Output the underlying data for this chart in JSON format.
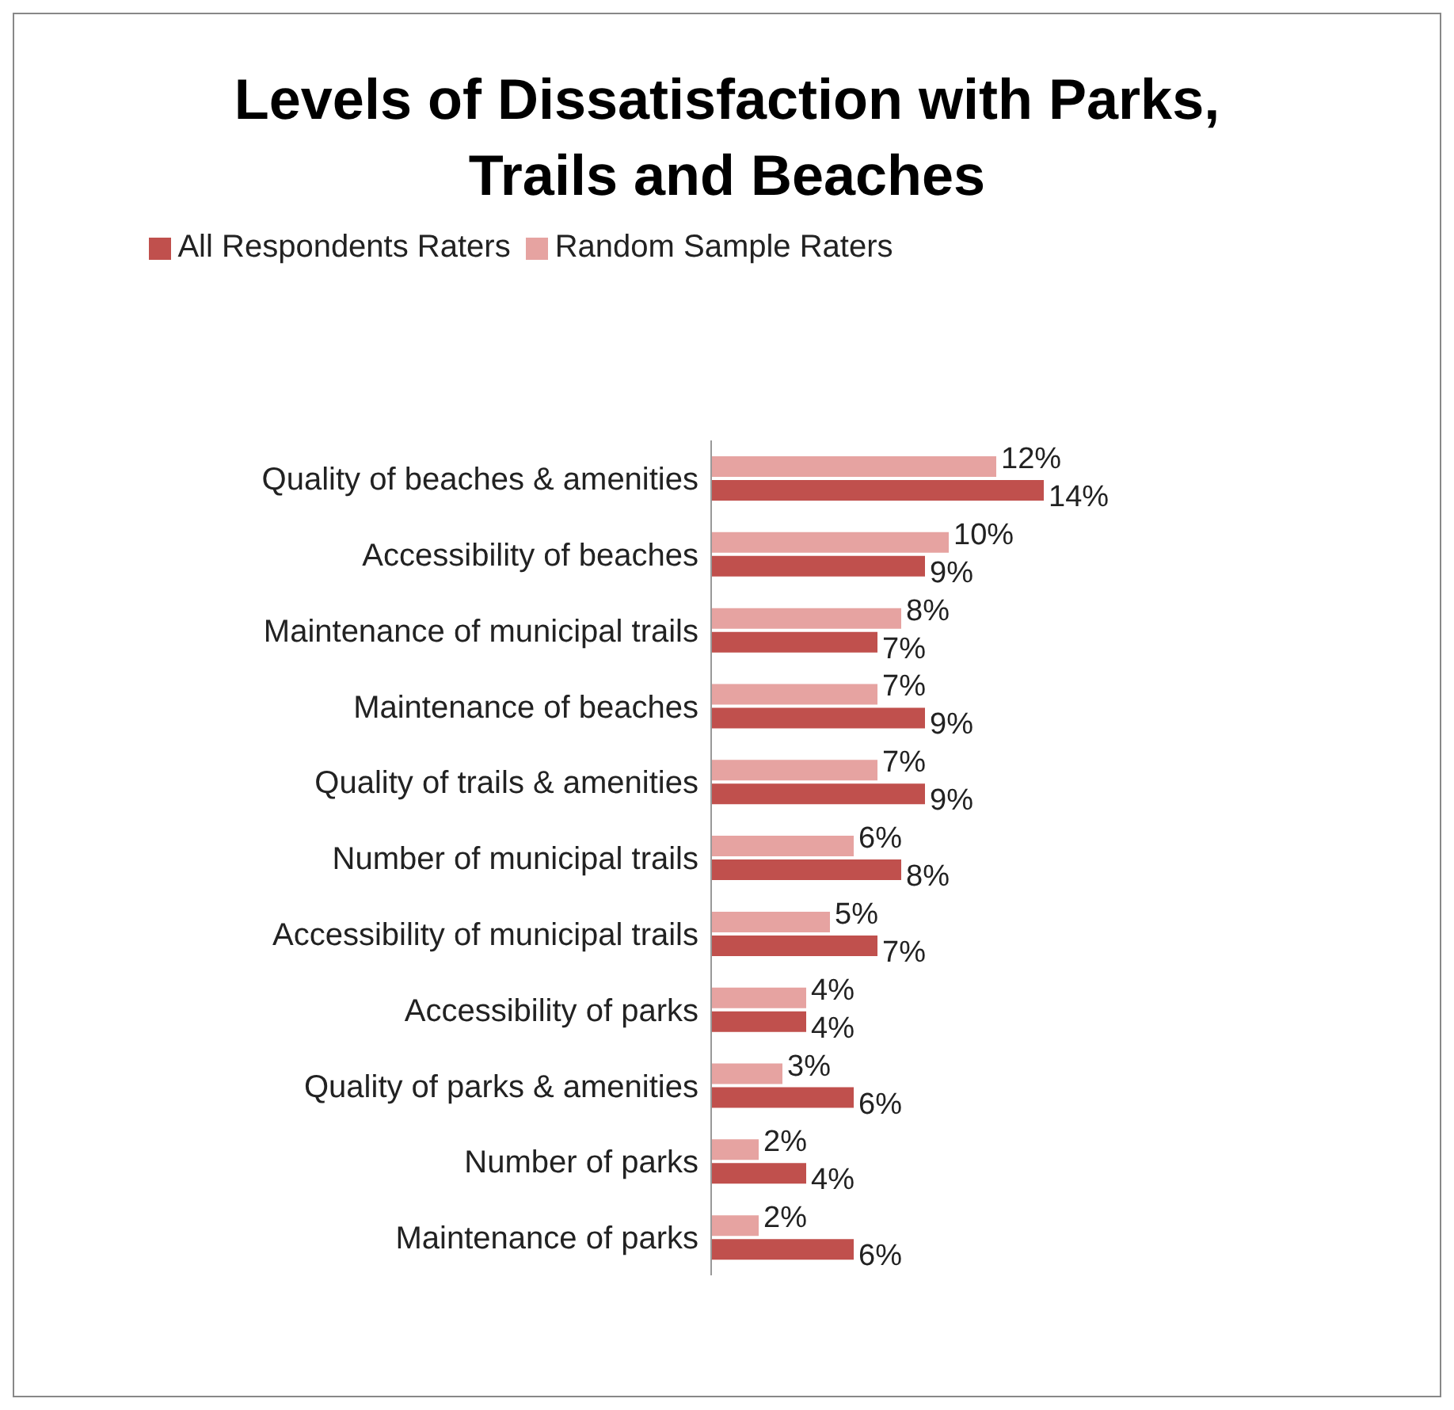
{
  "chart_data": {
    "type": "bar",
    "orientation": "horizontal",
    "title": "Levels of Dissatisfaction with Parks, Trails and Beaches",
    "legend": "top",
    "categories": [
      "Quality of beaches & amenities",
      "Accessibility of beaches",
      "Maintenance of municipal trails",
      "Maintenance of beaches",
      "Quality of trails & amenities",
      "Number of municipal trails",
      "Accessibility of municipal trails",
      "Accessibility of parks",
      "Quality of parks & amenities",
      "Number of parks",
      "Maintenance of parks"
    ],
    "series": [
      {
        "name": "Random Sample Raters",
        "color": "#e6a3a1",
        "values": [
          12,
          10,
          8,
          7,
          7,
          6,
          5,
          4,
          3,
          2,
          2
        ],
        "value_labels": [
          "12%",
          "10%",
          "8%",
          "7%",
          "7%",
          "6%",
          "5%",
          "4%",
          "3%",
          "2%",
          "2%"
        ]
      },
      {
        "name": "All Respondents Raters",
        "color": "#c0504d",
        "values": [
          14,
          9,
          7,
          9,
          9,
          8,
          7,
          4,
          6,
          4,
          6
        ],
        "value_labels": [
          "14%",
          "9%",
          "7%",
          "9%",
          "9%",
          "8%",
          "7%",
          "4%",
          "6%",
          "4%",
          "6%"
        ]
      }
    ]
  }
}
